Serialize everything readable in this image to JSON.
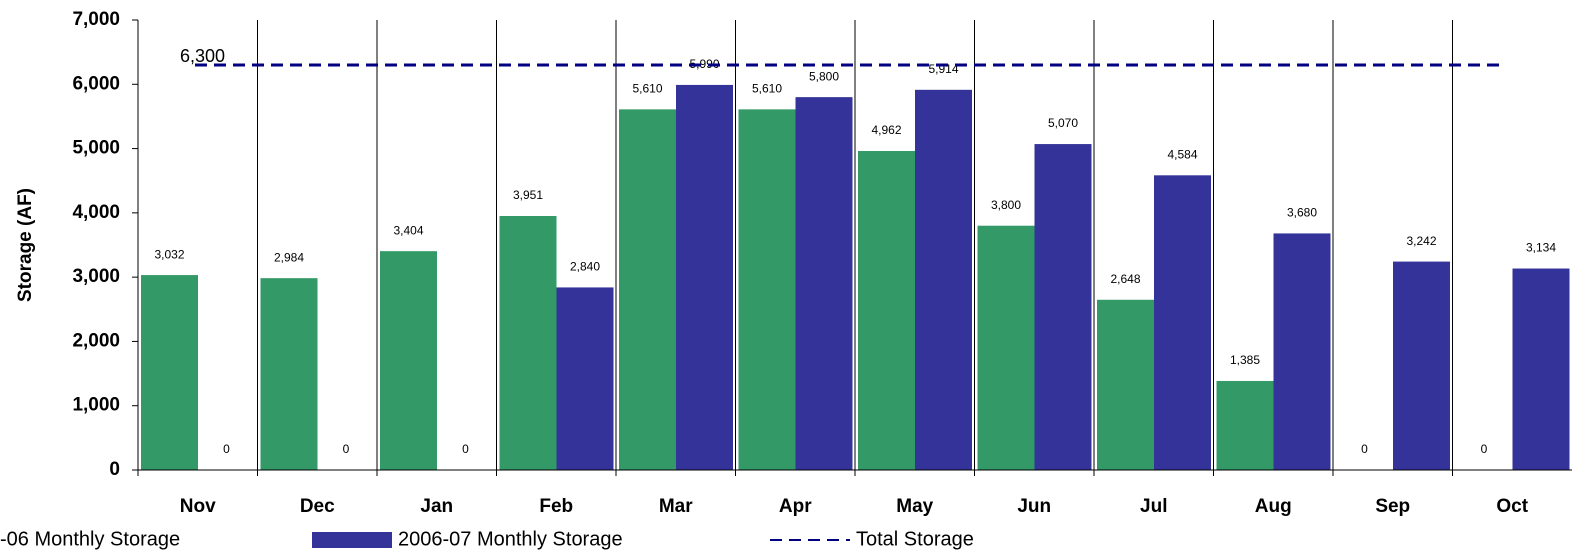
{
  "chart_data": {
    "type": "bar",
    "y_label": "Storage (AF)",
    "categories": [
      "Nov",
      "Dec",
      "Jan",
      "Feb",
      "Mar",
      "Apr",
      "May",
      "Jun",
      "Jul",
      "Aug",
      "Sep",
      "Oct"
    ],
    "series": [
      {
        "name": "-06 Monthly Storage",
        "color": "#339966",
        "values": [
          3032,
          2984,
          3404,
          3951,
          5610,
          5610,
          4962,
          3800,
          2648,
          1385,
          0,
          0
        ],
        "value_labels": [
          "3,032",
          "2,984",
          "3,404",
          "3,951",
          "5,610",
          "5,610",
          "4,962",
          "3,800",
          "2,648",
          "1,385",
          "0",
          "0"
        ]
      },
      {
        "name": "2006-07 Monthly Storage",
        "color": "#333399",
        "values": [
          0,
          0,
          0,
          2840,
          5990,
          5800,
          5914,
          5070,
          4584,
          3680,
          3242,
          3134
        ],
        "value_labels": [
          "0",
          "0",
          "0",
          "2,840",
          "5,990",
          "5,800",
          "5,914",
          "5,070",
          "4,584",
          "3,680",
          "3,242",
          "3,134"
        ]
      }
    ],
    "total": {
      "name": "Total Storage",
      "value": 6300,
      "label": "6,300",
      "color": "#000080"
    },
    "ylim": [
      0,
      7000
    ],
    "yticks": [
      0,
      {
        "value": 1000,
        "label": "1,000"
      },
      {
        "value": 2000,
        "label": "2,000"
      },
      {
        "value": 3000,
        "label": "3,000"
      },
      {
        "value": 4000,
        "label": "4,000"
      },
      {
        "value": 5000,
        "label": "5,000"
      },
      {
        "value": 6000,
        "label": "6,000"
      },
      {
        "value": 7000,
        "label": "7,000"
      }
    ],
    "category_separators": true
  }
}
